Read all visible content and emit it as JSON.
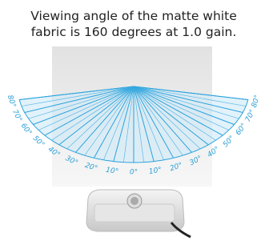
{
  "header": {
    "title_lines": [
      "Viewing angle of the matte white",
      "fabric is 160 degrees at 1.0 gain."
    ]
  },
  "diagram": {
    "angle_labels": [
      "80°",
      "70°",
      "60°",
      "50°",
      "40°",
      "30°",
      "20°",
      "10°",
      "0°",
      "10°",
      "20°",
      "30°",
      "40°",
      "50°",
      "60°",
      "70°",
      "80°"
    ]
  }
}
